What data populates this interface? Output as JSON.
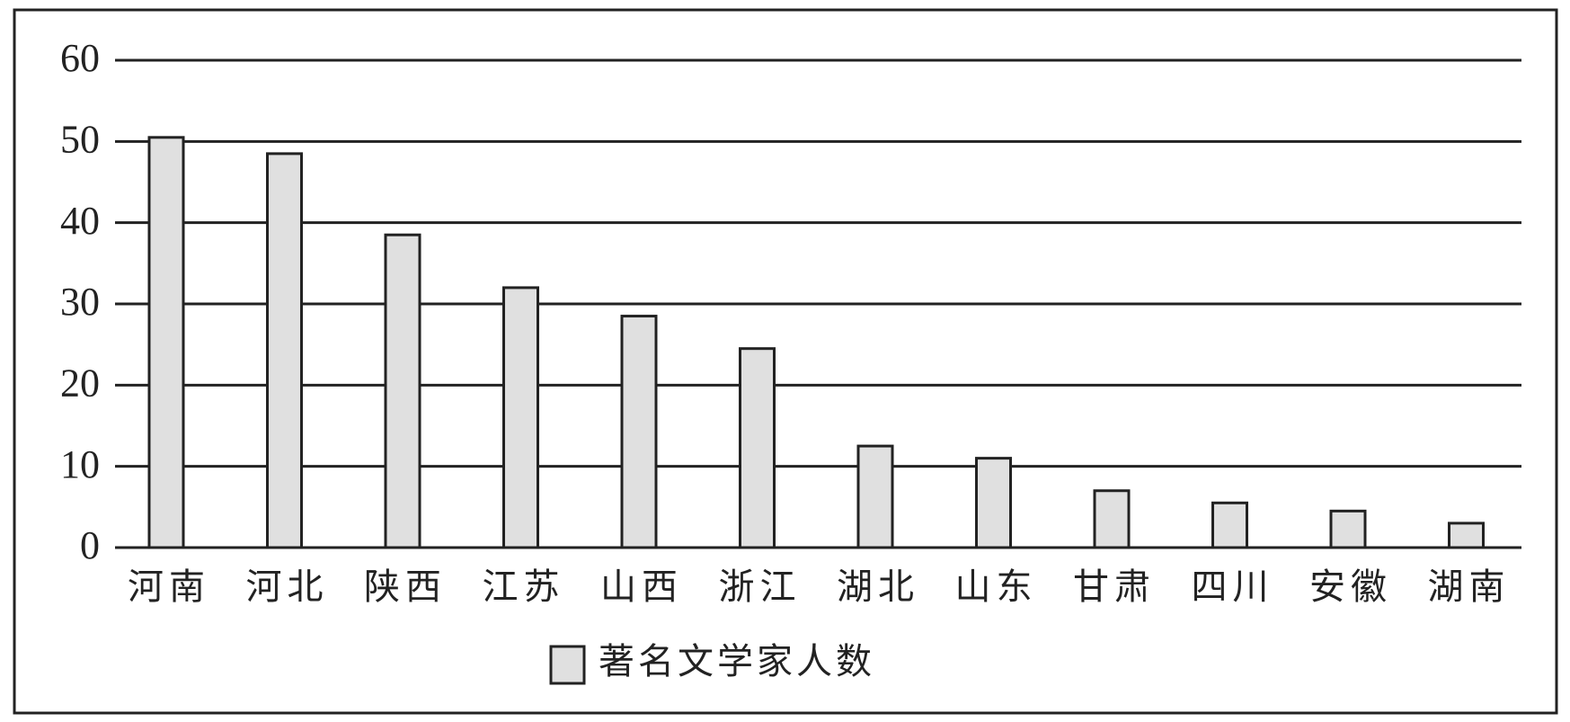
{
  "chart_data": {
    "type": "bar",
    "categories": [
      "河南",
      "河北",
      "陕西",
      "江苏",
      "山西",
      "浙江",
      "湖北",
      "山东",
      "甘肃",
      "四川",
      "安徽",
      "湖南"
    ],
    "series": [
      {
        "name": "著名文学家人数",
        "color": "#e0e0e0",
        "values": [
          50.5,
          48.5,
          38.5,
          32,
          28.5,
          24.5,
          12.5,
          11,
          7,
          5.5,
          4.5,
          3
        ]
      }
    ],
    "ylim": [
      0,
      60
    ],
    "yticks": [
      0,
      10,
      20,
      30,
      40,
      50,
      60
    ],
    "grid": true
  }
}
